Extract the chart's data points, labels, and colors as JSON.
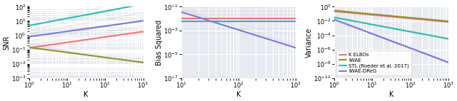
{
  "background_color": "#e8eaf0",
  "grid_color": "#ffffff",
  "plot1": {
    "xlabel": "K",
    "ylabel": "SNR",
    "xlim": [
      1,
      1000
    ],
    "ylim": [
      0.001,
      100.0
    ],
    "lines": [
      {
        "color": "#a0dede",
        "alpha": 0.3,
        "lw": 0.9,
        "slope": 0.75,
        "intercept_log": 0.55
      },
      {
        "color": "#a0dede",
        "alpha": 0.3,
        "lw": 0.9,
        "slope": 0.65,
        "intercept_log": 0.3
      },
      {
        "color": "#b0b0d8",
        "alpha": 0.25,
        "lw": 0.9,
        "slope": 0.5,
        "intercept_log": 0.1
      },
      {
        "color": "#e8a0b0",
        "alpha": 0.2,
        "lw": 0.9,
        "slope": 0.5,
        "intercept_log": -0.4
      },
      {
        "color": "#e8a0b0",
        "alpha": 0.2,
        "lw": 0.9,
        "slope": 0.45,
        "intercept_log": -0.7
      },
      {
        "color": "#e8a0b0",
        "alpha": 0.2,
        "lw": 0.9,
        "slope": 0.38,
        "intercept_log": -1.0
      },
      {
        "color": "#c8c890",
        "alpha": 0.25,
        "lw": 0.9,
        "slope": -0.3,
        "intercept_log": -0.8
      },
      {
        "color": "#c8c890",
        "alpha": 0.2,
        "lw": 0.9,
        "slope": -0.45,
        "intercept_log": -0.65
      },
      {
        "color": "#c8c890",
        "alpha": 0.2,
        "lw": 0.9,
        "slope": -0.55,
        "intercept_log": -0.55
      },
      {
        "color": "#d0d0d0",
        "alpha": 0.25,
        "lw": 0.9,
        "slope": 0.3,
        "intercept_log": 0.1
      },
      {
        "color": "#d0d0d0",
        "alpha": 0.2,
        "lw": 0.9,
        "slope": 0.18,
        "intercept_log": -0.05
      },
      {
        "color": "#2eb8b0",
        "alpha": 1.0,
        "lw": 1.5,
        "slope": 0.5,
        "intercept_log": 0.68
      },
      {
        "color": "#7878d8",
        "alpha": 1.0,
        "lw": 1.5,
        "slope": 0.37,
        "intercept_log": -0.1
      },
      {
        "color": "#e87878",
        "alpha": 1.0,
        "lw": 1.5,
        "slope": 0.38,
        "intercept_log": -0.88
      },
      {
        "color": "#909030",
        "alpha": 1.0,
        "lw": 1.5,
        "slope": -0.35,
        "intercept_log": -0.85
      }
    ]
  },
  "plot2": {
    "xlabel": "K",
    "ylabel": "Bias Squared",
    "xlim": [
      10,
      1000
    ],
    "ylim": [
      1e-07,
      0.1
    ],
    "lines": [
      {
        "color": "#e8a0b0",
        "alpha": 0.2,
        "lw": 0.9,
        "slope": 0.0,
        "intercept_log": -1.05
      },
      {
        "color": "#e8a0b0",
        "alpha": 0.2,
        "lw": 0.9,
        "slope": 0.0,
        "intercept_log": -1.35
      },
      {
        "color": "#e8a0b0",
        "alpha": 0.2,
        "lw": 0.9,
        "slope": 0.0,
        "intercept_log": -1.65
      },
      {
        "color": "#a0dede",
        "alpha": 0.25,
        "lw": 0.9,
        "slope": 0.0,
        "intercept_log": -2.8
      },
      {
        "color": "#a0dede",
        "alpha": 0.2,
        "lw": 0.9,
        "slope": 0.0,
        "intercept_log": -3.2
      },
      {
        "color": "#b0a0e0",
        "alpha": 0.2,
        "lw": 0.9,
        "slope": -1.5,
        "intercept_log": 0.3
      },
      {
        "color": "#b0a0e0",
        "alpha": 0.15,
        "lw": 0.9,
        "slope": -1.0,
        "intercept_log": -0.5
      },
      {
        "color": "#e87878",
        "alpha": 1.0,
        "lw": 1.5,
        "slope": 0.0,
        "intercept_log": -2.0
      },
      {
        "color": "#2eb8b0",
        "alpha": 1.0,
        "lw": 1.5,
        "slope": 0.0,
        "intercept_log": -2.22
      },
      {
        "color": "#7878d8",
        "alpha": 1.0,
        "lw": 1.5,
        "slope": -1.5,
        "intercept_log": 0.05
      }
    ]
  },
  "plot3": {
    "xlabel": "K",
    "ylabel": "Variance",
    "xlim": [
      1,
      1000
    ],
    "ylim": [
      1e-10,
      1.0
    ],
    "lines": [
      {
        "label": "",
        "color": "#e8a0b0",
        "alpha": 0.25,
        "lw": 1.0,
        "slope": -0.5,
        "intercept_log": -0.55
      },
      {
        "label": "",
        "color": "#c8c890",
        "alpha": 0.25,
        "lw": 1.0,
        "slope": -0.5,
        "intercept_log": -0.45
      },
      {
        "label": "",
        "color": "#a0dede",
        "alpha": 0.25,
        "lw": 1.0,
        "slope": -1.0,
        "intercept_log": -1.4
      },
      {
        "label": "",
        "color": "#b0a0e0",
        "alpha": 0.25,
        "lw": 1.0,
        "slope": -2.0,
        "intercept_log": -1.7
      },
      {
        "label": "K ELBOs",
        "color": "#e87878",
        "alpha": 1.0,
        "lw": 1.5,
        "slope": -0.5,
        "intercept_log": -0.65
      },
      {
        "label": "IWAE",
        "color": "#909030",
        "alpha": 1.0,
        "lw": 1.5,
        "slope": -0.5,
        "intercept_log": -0.55
      },
      {
        "label": "STL (Roeder et al. 2017)",
        "color": "#2eb8b0",
        "alpha": 1.0,
        "lw": 1.5,
        "slope": -1.0,
        "intercept_log": -1.5
      },
      {
        "label": "IWAE-DReG",
        "color": "#7878d8",
        "alpha": 1.0,
        "lw": 1.5,
        "slope": -2.0,
        "intercept_log": -1.8
      }
    ],
    "legend_entries": [
      "K ELBOs",
      "IWAE",
      "STL (Roeder et al. 2017)",
      "IWAE-DReG"
    ]
  }
}
